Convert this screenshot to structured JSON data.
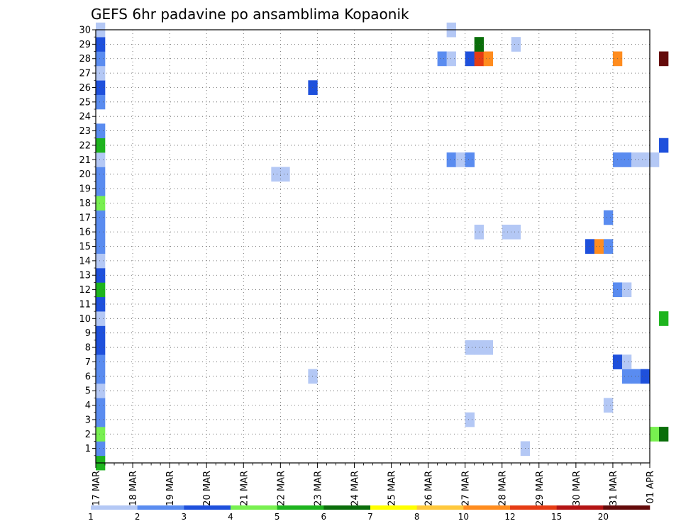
{
  "chart_data": {
    "type": "heatmap",
    "title": "GEFS 6hr padavine po ansamblima Kopaonik",
    "xlabel": "",
    "ylabel": "",
    "x_tick_labels": [
      "17 MAR",
      "18 MAR",
      "19 MAR",
      "20 MAR",
      "21 MAR",
      "22 MAR",
      "23 MAR",
      "24 MAR",
      "25 MAR",
      "26 MAR",
      "27 MAR",
      "28 MAR",
      "29 MAR",
      "30 MAR",
      "31 MAR",
      "01 APR"
    ],
    "y_tick_labels": [
      "1",
      "2",
      "3",
      "4",
      "5",
      "6",
      "7",
      "8",
      "9",
      "10",
      "11",
      "12",
      "13",
      "14",
      "15",
      "16",
      "17",
      "18",
      "19",
      "20",
      "21",
      "22",
      "23",
      "24",
      "25",
      "26",
      "27",
      "28",
      "29",
      "30"
    ],
    "ylim": [
      0,
      30
    ],
    "x_step_hours": 6,
    "steps_per_day": 4,
    "grid": true,
    "colorbar": {
      "position": "bottom",
      "labels": [
        "1",
        "2",
        "3",
        "4",
        "5",
        "6",
        "7",
        "8",
        "10",
        "12",
        "15",
        "20"
      ],
      "colors": [
        "#b4c8f5",
        "#5a8cf0",
        "#1e50dc",
        "#78f050",
        "#1eb41e",
        "#0a6e0a",
        "#ffff00",
        "#ffc83c",
        "#ff8c1e",
        "#e63c14",
        "#b41414",
        "#640a0a"
      ]
    },
    "cells": [
      {
        "member": 0,
        "step": 0,
        "cls": 4
      },
      {
        "member": 1,
        "step": 0,
        "cls": 1
      },
      {
        "member": 2,
        "step": 0,
        "cls": 3
      },
      {
        "member": 3,
        "step": 0,
        "cls": 1
      },
      {
        "member": 4,
        "step": 0,
        "cls": 1
      },
      {
        "member": 5,
        "step": 0,
        "cls": 0
      },
      {
        "member": 6,
        "step": 0,
        "cls": 1
      },
      {
        "member": 7,
        "step": 0,
        "cls": 1
      },
      {
        "member": 8,
        "step": 0,
        "cls": 2
      },
      {
        "member": 9,
        "step": 0,
        "cls": 2
      },
      {
        "member": 10,
        "step": 0,
        "cls": 0
      },
      {
        "member": 11,
        "step": 0,
        "cls": 2
      },
      {
        "member": 12,
        "step": 0,
        "cls": 4
      },
      {
        "member": 13,
        "step": 0,
        "cls": 2
      },
      {
        "member": 14,
        "step": 0,
        "cls": 0
      },
      {
        "member": 15,
        "step": 0,
        "cls": 1
      },
      {
        "member": 16,
        "step": 0,
        "cls": 1
      },
      {
        "member": 17,
        "step": 0,
        "cls": 1
      },
      {
        "member": 18,
        "step": 0,
        "cls": 3
      },
      {
        "member": 19,
        "step": 0,
        "cls": 1
      },
      {
        "member": 20,
        "step": 0,
        "cls": 1
      },
      {
        "member": 21,
        "step": 0,
        "cls": 0
      },
      {
        "member": 22,
        "step": 0,
        "cls": 4
      },
      {
        "member": 23,
        "step": 0,
        "cls": 1
      },
      {
        "member": 25,
        "step": 0,
        "cls": 1
      },
      {
        "member": 26,
        "step": 0,
        "cls": 2
      },
      {
        "member": 27,
        "step": 0,
        "cls": 0
      },
      {
        "member": 28,
        "step": 0,
        "cls": 1
      },
      {
        "member": 29,
        "step": 0,
        "cls": 2
      },
      {
        "member": 30,
        "step": 0,
        "cls": 0
      },
      {
        "member": 1,
        "step": 46,
        "cls": 0
      },
      {
        "member": 2,
        "step": 60,
        "cls": 3
      },
      {
        "member": 2,
        "step": 61,
        "cls": 5
      },
      {
        "member": 3,
        "step": 40,
        "cls": 0
      },
      {
        "member": 4,
        "step": 55,
        "cls": 0
      },
      {
        "member": 6,
        "step": 23,
        "cls": 0
      },
      {
        "member": 6,
        "step": 57,
        "cls": 1
      },
      {
        "member": 6,
        "step": 58,
        "cls": 1
      },
      {
        "member": 6,
        "step": 59,
        "cls": 2
      },
      {
        "member": 7,
        "step": 56,
        "cls": 2
      },
      {
        "member": 7,
        "step": 57,
        "cls": 0
      },
      {
        "member": 8,
        "step": 40,
        "cls": 0
      },
      {
        "member": 8,
        "step": 41,
        "cls": 0
      },
      {
        "member": 8,
        "step": 42,
        "cls": 0
      },
      {
        "member": 10,
        "step": 61,
        "cls": 4
      },
      {
        "member": 12,
        "step": 56,
        "cls": 1
      },
      {
        "member": 12,
        "step": 57,
        "cls": 0
      },
      {
        "member": 15,
        "step": 53,
        "cls": 2
      },
      {
        "member": 15,
        "step": 54,
        "cls": 8
      },
      {
        "member": 15,
        "step": 55,
        "cls": 1
      },
      {
        "member": 16,
        "step": 41,
        "cls": 0
      },
      {
        "member": 16,
        "step": 44,
        "cls": 0
      },
      {
        "member": 16,
        "step": 45,
        "cls": 0
      },
      {
        "member": 17,
        "step": 55,
        "cls": 1
      },
      {
        "member": 20,
        "step": 19,
        "cls": 0
      },
      {
        "member": 20,
        "step": 20,
        "cls": 0
      },
      {
        "member": 21,
        "step": 38,
        "cls": 1
      },
      {
        "member": 21,
        "step": 39,
        "cls": 0
      },
      {
        "member": 21,
        "step": 40,
        "cls": 1
      },
      {
        "member": 21,
        "step": 56,
        "cls": 1
      },
      {
        "member": 21,
        "step": 57,
        "cls": 1
      },
      {
        "member": 21,
        "step": 58,
        "cls": 0
      },
      {
        "member": 21,
        "step": 59,
        "cls": 0
      },
      {
        "member": 21,
        "step": 60,
        "cls": 0
      },
      {
        "member": 22,
        "step": 61,
        "cls": 2
      },
      {
        "member": 26,
        "step": 23,
        "cls": 2
      },
      {
        "member": 28,
        "step": 37,
        "cls": 1
      },
      {
        "member": 28,
        "step": 38,
        "cls": 0
      },
      {
        "member": 28,
        "step": 40,
        "cls": 2
      },
      {
        "member": 28,
        "step": 41,
        "cls": 9
      },
      {
        "member": 28,
        "step": 42,
        "cls": 8
      },
      {
        "member": 28,
        "step": 56,
        "cls": 8
      },
      {
        "member": 28,
        "step": 61,
        "cls": 11
      },
      {
        "member": 29,
        "step": 41,
        "cls": 5
      },
      {
        "member": 29,
        "step": 45,
        "cls": 0
      },
      {
        "member": 30,
        "step": 38,
        "cls": 0
      }
    ]
  }
}
